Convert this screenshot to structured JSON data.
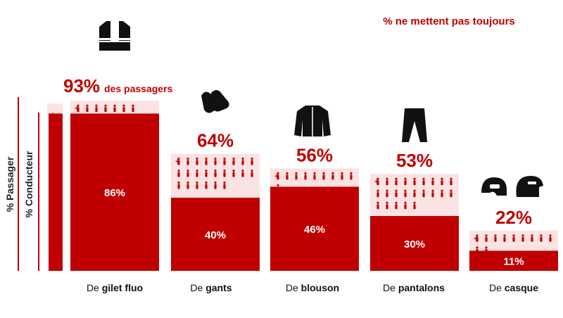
{
  "chart_data": {
    "type": "bar",
    "subtitle": "% ne mettent pas toujours",
    "ylabel_outer": "% Passager",
    "ylabel_inner": "% Conducteur",
    "categories": [
      {
        "prefix": "De ",
        "bold": "gilet fluo",
        "icon": "safety-vest-icon"
      },
      {
        "prefix": "De ",
        "bold": "gants",
        "icon": "gloves-icon"
      },
      {
        "prefix": "De ",
        "bold": "blouson",
        "icon": "jacket-icon"
      },
      {
        "prefix": "De ",
        "bold": "pantalons",
        "icon": "trousers-icon"
      },
      {
        "prefix": "De ",
        "bold": "casque",
        "icon": "helmet-icon"
      }
    ],
    "series": [
      {
        "name": "% Conducteur",
        "values": [
          86,
          40,
          46,
          30,
          11
        ],
        "labels": [
          "86%",
          "40%",
          "46%",
          "30%",
          "11%"
        ]
      },
      {
        "name": "% Passager",
        "values": [
          93,
          64,
          56,
          53,
          22
        ],
        "labels": [
          "93%",
          "64%",
          "56%",
          "53%",
          "22%"
        ]
      }
    ],
    "passenger_suffix_first": "des passagers",
    "plus_sign": "+",
    "ylim": [
      0,
      100
    ],
    "colors": {
      "driver": "#c00000",
      "passenger": "#fbe3e3",
      "text_red": "#c00000",
      "axis": "#c00000"
    }
  }
}
